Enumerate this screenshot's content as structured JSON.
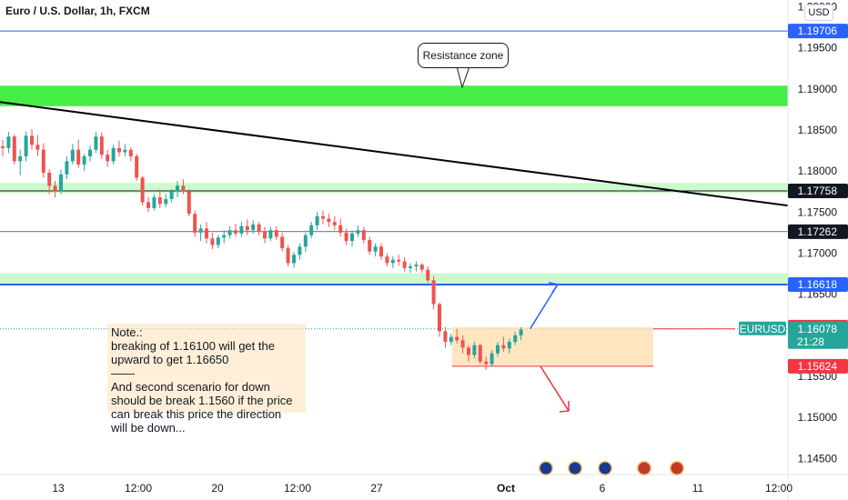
{
  "header": {
    "title": "Euro / U.S. Dollar, 1h, FXCM",
    "currency": "USD"
  },
  "annotations": {
    "callout": "Resistance zone",
    "note_lines": [
      "Note.:",
      "breaking of 1.16100 will get the",
      "upward to get 1.16650",
      "——",
      "And second scenario for down",
      "should be break 1.1560 if the price",
      "can break this price the direction",
      "will be down..."
    ]
  },
  "colors": {
    "up": "#26a69a",
    "down": "#ef5350",
    "zone": "#00e600",
    "blue_line": "#2962ff",
    "orange_zone": "#ffe0b2",
    "badge_dark": "#131722"
  },
  "chart_data": {
    "type": "candlestick",
    "title": "Euro / U.S. Dollar, 1h, FXCM",
    "ylim": [
      1.1405,
      1.2005
    ],
    "y_ticks": [
      "1.20000",
      "1.19500",
      "1.19000",
      "1.18500",
      "1.18000",
      "1.17500",
      "1.17000",
      "1.16500",
      "1.15500",
      "1.15000",
      "1.14500"
    ],
    "x_ticks": [
      {
        "label": "13",
        "bold": false
      },
      {
        "label": "12:00",
        "bold": false
      },
      {
        "label": "20",
        "bold": false
      },
      {
        "label": "12:00",
        "bold": false
      },
      {
        "label": "27",
        "bold": false
      },
      {
        "label": "Oct",
        "bold": true
      },
      {
        "label": "6",
        "bold": false
      },
      {
        "label": "11",
        "bold": false
      },
      {
        "label": "12:00",
        "bold": false
      }
    ],
    "price_levels": [
      {
        "label": "1.19706",
        "value": 1.19706,
        "color": "#2962ff",
        "line": "solid"
      },
      {
        "label": "1.17758",
        "value": 1.17758,
        "color": "#131722",
        "line": "solid"
      },
      {
        "label": "1.17262",
        "value": 1.17262,
        "color": "#131722",
        "line": "thin"
      },
      {
        "label": "1.16618",
        "value": 1.16618,
        "color": "#2962ff",
        "line": "solid"
      },
      {
        "label": "1.16100",
        "value": 1.161,
        "color": "#f23645",
        "line": "none"
      },
      {
        "label": "1.15624",
        "value": 1.15624,
        "color": "#f23645",
        "line": "none"
      }
    ],
    "symbol_badge": {
      "label": "EURUSD",
      "price": "1.16078",
      "countdown": "21:28",
      "value": 1.16078
    },
    "zones": [
      {
        "name": "Resistance zone",
        "from": 1.1879,
        "to": 1.1904
      },
      {
        "name": "support zone upper",
        "from": 1.17732,
        "to": 1.17855
      },
      {
        "name": "support zone lower",
        "from": 1.16618,
        "to": 1.16755
      }
    ],
    "trendline": {
      "start": 1.1884,
      "end": 1.1758
    },
    "series": [
      {
        "values": [
          [
            1.183,
            1.1838,
            1.1818,
            1.1828
          ],
          [
            1.1828,
            1.1848,
            1.1822,
            1.1842
          ],
          [
            1.1842,
            1.1845,
            1.1808,
            1.1812
          ],
          [
            1.1812,
            1.1826,
            1.1795,
            1.1818
          ],
          [
            1.1818,
            1.1848,
            1.1812,
            1.1843
          ],
          [
            1.1843,
            1.1851,
            1.1826,
            1.1832
          ],
          [
            1.1832,
            1.1844,
            1.1818,
            1.1826
          ],
          [
            1.1826,
            1.1834,
            1.1792,
            1.1798
          ],
          [
            1.1798,
            1.1802,
            1.1772,
            1.1782
          ],
          [
            1.1782,
            1.1788,
            1.1768,
            1.1775
          ],
          [
            1.1775,
            1.1802,
            1.1772,
            1.1796
          ],
          [
            1.1796,
            1.1818,
            1.179,
            1.1812
          ],
          [
            1.1812,
            1.1833,
            1.1808,
            1.1826
          ],
          [
            1.1826,
            1.1838,
            1.1804,
            1.1808
          ],
          [
            1.1808,
            1.1821,
            1.18,
            1.1818
          ],
          [
            1.1818,
            1.1831,
            1.1812,
            1.1826
          ],
          [
            1.1826,
            1.1848,
            1.1822,
            1.1842
          ],
          [
            1.1842,
            1.1847,
            1.1815,
            1.182
          ],
          [
            1.182,
            1.1826,
            1.1805,
            1.1812
          ],
          [
            1.1812,
            1.1832,
            1.1808,
            1.1828
          ],
          [
            1.1828,
            1.1837,
            1.1818,
            1.1823
          ],
          [
            1.1823,
            1.1833,
            1.1818,
            1.1826
          ],
          [
            1.1826,
            1.1829,
            1.1812,
            1.1818
          ],
          [
            1.1818,
            1.1821,
            1.1788,
            1.1792
          ],
          [
            1.1792,
            1.1794,
            1.1758,
            1.1762
          ],
          [
            1.1762,
            1.1768,
            1.175,
            1.1755
          ],
          [
            1.1755,
            1.1772,
            1.1752,
            1.1768
          ],
          [
            1.1768,
            1.1778,
            1.1755,
            1.176
          ],
          [
            1.176,
            1.1772,
            1.1756,
            1.1766
          ],
          [
            1.1766,
            1.1778,
            1.1762,
            1.1775
          ],
          [
            1.1775,
            1.1788,
            1.1768,
            1.1782
          ],
          [
            1.1782,
            1.179,
            1.1772,
            1.1775
          ],
          [
            1.1775,
            1.1778,
            1.1745,
            1.1748
          ],
          [
            1.1748,
            1.1752,
            1.172,
            1.1725
          ],
          [
            1.1725,
            1.1735,
            1.1715,
            1.173
          ],
          [
            1.173,
            1.1738,
            1.1712,
            1.1718
          ],
          [
            1.1718,
            1.1725,
            1.1705,
            1.171
          ],
          [
            1.171,
            1.1722,
            1.1706,
            1.1719
          ],
          [
            1.1719,
            1.1728,
            1.1712,
            1.1722
          ],
          [
            1.1722,
            1.1733,
            1.1718,
            1.1728
          ],
          [
            1.1728,
            1.1736,
            1.172,
            1.1724
          ],
          [
            1.1724,
            1.1738,
            1.172,
            1.1733
          ],
          [
            1.1733,
            1.1741,
            1.1722,
            1.1728
          ],
          [
            1.1728,
            1.174,
            1.1724,
            1.1735
          ],
          [
            1.1735,
            1.1738,
            1.1722,
            1.1726
          ],
          [
            1.1726,
            1.1732,
            1.1712,
            1.1718
          ],
          [
            1.1718,
            1.1732,
            1.1715,
            1.1728
          ],
          [
            1.1728,
            1.1733,
            1.1716,
            1.172
          ],
          [
            1.172,
            1.1725,
            1.1702,
            1.1706
          ],
          [
            1.1706,
            1.171,
            1.1684,
            1.1688
          ],
          [
            1.1688,
            1.1702,
            1.1682,
            1.1698
          ],
          [
            1.1698,
            1.1712,
            1.1692,
            1.1708
          ],
          [
            1.1708,
            1.1725,
            1.1702,
            1.1722
          ],
          [
            1.1722,
            1.1738,
            1.1718,
            1.1734
          ],
          [
            1.1734,
            1.175,
            1.1728,
            1.1745
          ],
          [
            1.1745,
            1.1752,
            1.1735,
            1.1742
          ],
          [
            1.1742,
            1.1748,
            1.1732,
            1.1738
          ],
          [
            1.1738,
            1.1745,
            1.1728,
            1.1734
          ],
          [
            1.1734,
            1.1742,
            1.172,
            1.1725
          ],
          [
            1.1725,
            1.173,
            1.171,
            1.1715
          ],
          [
            1.1715,
            1.1728,
            1.1708,
            1.1724
          ],
          [
            1.1724,
            1.1734,
            1.172,
            1.1728
          ],
          [
            1.1728,
            1.1732,
            1.1712,
            1.1716
          ],
          [
            1.1716,
            1.172,
            1.1698,
            1.1702
          ],
          [
            1.1702,
            1.1712,
            1.1696,
            1.1708
          ],
          [
            1.1708,
            1.1712,
            1.1692,
            1.1696
          ],
          [
            1.1696,
            1.17,
            1.1684,
            1.1688
          ],
          [
            1.1688,
            1.1696,
            1.1682,
            1.1692
          ],
          [
            1.1692,
            1.1698,
            1.1685,
            1.169
          ],
          [
            1.169,
            1.1695,
            1.1678,
            1.1682
          ],
          [
            1.1682,
            1.1688,
            1.1676,
            1.1684
          ],
          [
            1.1684,
            1.169,
            1.1678,
            1.1686
          ],
          [
            1.1686,
            1.1688,
            1.1676,
            1.168
          ],
          [
            1.168,
            1.1684,
            1.1664,
            1.1667
          ],
          [
            1.1667,
            1.1672,
            1.1632,
            1.1638
          ],
          [
            1.1638,
            1.164,
            1.1598,
            1.1605
          ],
          [
            1.1605,
            1.161,
            1.1585,
            1.1592
          ],
          [
            1.1592,
            1.1602,
            1.1588,
            1.1598
          ],
          [
            1.1598,
            1.1608,
            1.159,
            1.1594
          ],
          [
            1.1594,
            1.16,
            1.1578,
            1.1585
          ],
          [
            1.1585,
            1.1588,
            1.1568,
            1.1576
          ],
          [
            1.1576,
            1.1592,
            1.1572,
            1.1588
          ],
          [
            1.1588,
            1.159,
            1.1565,
            1.1568
          ],
          [
            1.1568,
            1.1574,
            1.1558,
            1.1565
          ],
          [
            1.1565,
            1.1582,
            1.1562,
            1.1578
          ],
          [
            1.1578,
            1.1592,
            1.1574,
            1.1588
          ],
          [
            1.1588,
            1.1598,
            1.158,
            1.1584
          ],
          [
            1.1584,
            1.1596,
            1.1578,
            1.1592
          ],
          [
            1.1592,
            1.1604,
            1.1588,
            1.16
          ],
          [
            1.16,
            1.161,
            1.1594,
            1.1607
          ]
        ]
      }
    ]
  }
}
